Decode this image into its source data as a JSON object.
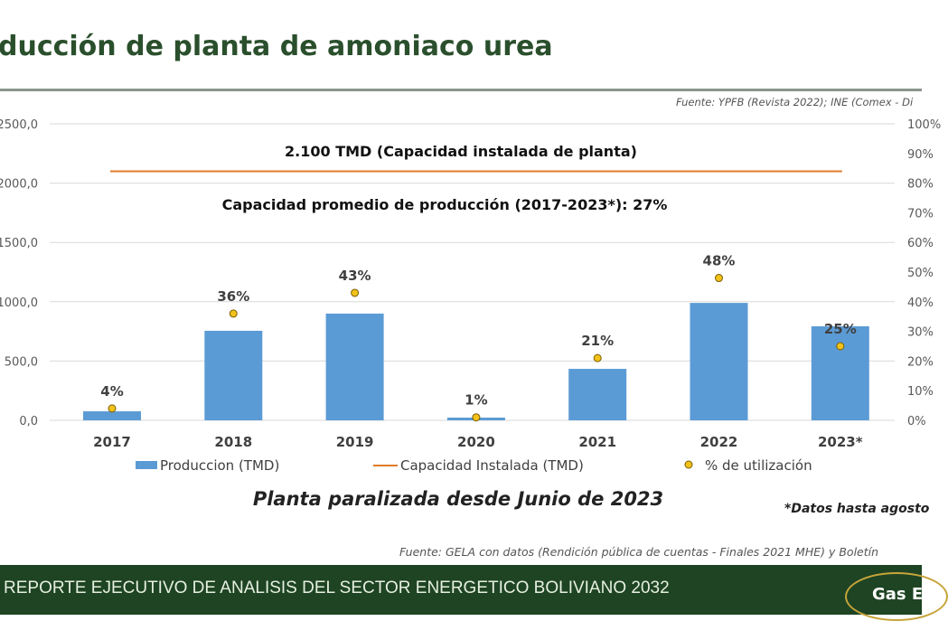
{
  "header": {
    "title": "ducción de planta de amoniaco urea",
    "source_top": "Fuente:  YPFB (Revista 2022); INE (Comex - Di"
  },
  "chart_data": {
    "type": "bar",
    "categories": [
      "2017",
      "2018",
      "2019",
      "2020",
      "2021",
      "2022",
      "2023*"
    ],
    "series": [
      {
        "name": "Produccion (TMD)",
        "type": "bar",
        "axis": "left",
        "color": "#5b9bd5",
        "values": [
          76,
          755,
          900,
          23,
          434,
          990,
          793
        ]
      },
      {
        "name": "Capacidad Instalada (TMD)",
        "type": "line",
        "axis": "left",
        "color": "#e07b2a",
        "values": [
          2100,
          2100,
          2100,
          2100,
          2100,
          2100,
          2100
        ]
      },
      {
        "name": "% de utilización",
        "type": "scatter",
        "axis": "right",
        "color": "#f2c21a",
        "values": [
          4,
          36,
          43,
          1,
          21,
          48,
          25
        ],
        "labels": [
          "4%",
          "36%",
          "43%",
          "1%",
          "21%",
          "48%",
          "25%"
        ]
      }
    ],
    "y_left": {
      "range": [
        0,
        2500
      ],
      "ticks": [
        "0,0",
        "500,0",
        "1000,0",
        "1500,0",
        "2000,0",
        "2500,0"
      ]
    },
    "y_right": {
      "range": [
        0,
        100
      ],
      "ticks": [
        "0%",
        "10%",
        "20%",
        "30%",
        "40%",
        "50%",
        "60%",
        "70%",
        "80%",
        "90%",
        "100%"
      ]
    },
    "grid": true,
    "legend_position": "bottom",
    "annotations": [
      "2.100 TMD (Capacidad instalada de planta)",
      "Capacidad promedio de producción (2017-2023*): 27%"
    ]
  },
  "subtitle": "Planta paralizada desde Junio de 2023",
  "note": "*Datos hasta agosto",
  "source_bottom": "Fuente:  GELA con datos (Rendición pública de cuentas - Finales 2021 MHE) y Boletín",
  "footer": {
    "text": "REPORTE EJECUTIVO DE ANALISIS DEL SECTOR ENERGETICO BOLIVIANO 2032",
    "logo": "Gas E"
  }
}
